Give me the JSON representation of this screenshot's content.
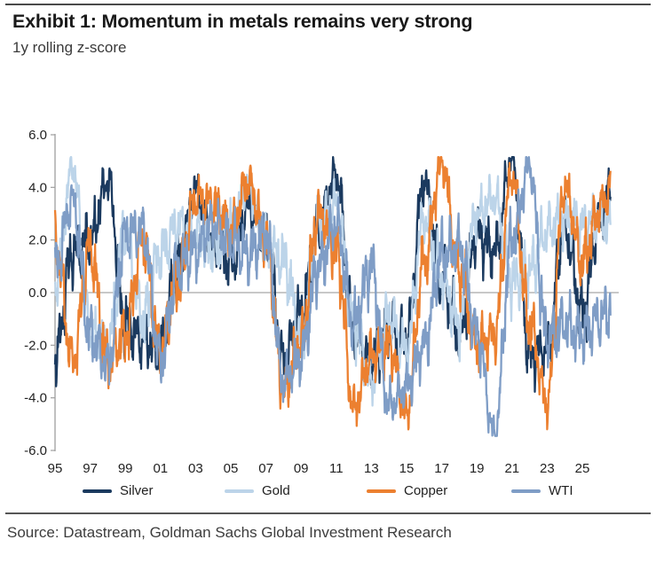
{
  "header": {
    "title": "Exhibit 1: Momentum in metals remains very strong",
    "subtitle": "1y rolling z-score"
  },
  "source": {
    "text": "Source: Datastream, Goldman Sachs Global Investment Research"
  },
  "colors": {
    "silver": "#1b3a5f",
    "gold": "#bcd4e9",
    "copper": "#ec8030",
    "wti": "#7f9dc6",
    "axis": "#9e9e9e",
    "zero_line": "#a8a8a8",
    "text": "#222222",
    "rule": "#4a4a4a"
  },
  "chart_data": {
    "type": "line",
    "title": "Exhibit 1: Momentum in metals remains very strong",
    "subtitle": "1y rolling z-score",
    "ylabel": "1y rolling z-score",
    "ylim": [
      -6.0,
      6.0
    ],
    "y_ticks": {
      "values": [
        6,
        4,
        2,
        0,
        -2,
        -4,
        -6
      ],
      "labels": [
        "6.0",
        "4.0",
        "2.0",
        "0.0",
        "-2.0",
        "-4.0",
        "-6.0"
      ]
    },
    "x_ticks": {
      "years": [
        1995,
        1997,
        1999,
        2001,
        2003,
        2005,
        2007,
        2009,
        2011,
        2013,
        2015,
        2017,
        2019,
        2021,
        2023,
        2025
      ],
      "labels": [
        "95",
        "97",
        "99",
        "01",
        "03",
        "05",
        "07",
        "09",
        "11",
        "13",
        "15",
        "17",
        "19",
        "21",
        "23",
        "25"
      ]
    },
    "x_range": [
      1995,
      2026.6
    ],
    "grid": false,
    "zero_line": true,
    "legend_position": "bottom",
    "x_years": [
      1995,
      1996,
      1997,
      1998,
      1999,
      2000,
      2001,
      2002,
      2003,
      2004,
      2005,
      2006,
      2007,
      2008,
      2009,
      2010,
      2011,
      2012,
      2013,
      2014,
      2015,
      2016,
      2017,
      2018,
      2019,
      2020,
      2021,
      2022,
      2023,
      2024,
      2025,
      2026,
      2026.6
    ],
    "series": [
      {
        "name": "Silver",
        "color": "#1b3a5f",
        "noise_amplitude": 0.85,
        "seed": 1,
        "values_yearly": [
          -2.5,
          1.5,
          2.0,
          4.3,
          -1.2,
          -1.8,
          -2.2,
          1.0,
          3.9,
          2.0,
          1.2,
          3.3,
          2.2,
          -2.6,
          -0.8,
          2.6,
          4.5,
          -1.6,
          -2.6,
          -1.4,
          -1.8,
          4.2,
          0.6,
          -1.6,
          2.2,
          1.5,
          5.1,
          -2.4,
          -2.2,
          2.5,
          -0.8,
          2.8,
          4.0
        ]
      },
      {
        "name": "Gold",
        "color": "#bcd4e9",
        "noise_amplitude": 0.85,
        "seed": 2,
        "values_yearly": [
          0.5,
          4.8,
          -1.6,
          -2.0,
          2.4,
          -1.0,
          1.5,
          2.6,
          2.2,
          1.6,
          2.6,
          4.0,
          1.8,
          1.2,
          -1.6,
          2.6,
          3.4,
          -1.2,
          -3.4,
          -1.0,
          -2.2,
          2.8,
          0.6,
          -1.2,
          3.0,
          3.6,
          0.5,
          0.8,
          2.4,
          2.8,
          2.6,
          2.8,
          2.4
        ]
      },
      {
        "name": "Copper",
        "color": "#ec8030",
        "noise_amplitude": 0.85,
        "seed": 3,
        "values_yearly": [
          2.0,
          -2.6,
          1.6,
          -2.6,
          -1.6,
          2.0,
          -2.2,
          0.5,
          3.6,
          3.4,
          2.4,
          4.2,
          2.0,
          -3.7,
          -1.8,
          3.0,
          1.6,
          -4.4,
          -2.4,
          -2.0,
          -4.6,
          1.2,
          4.9,
          0.8,
          -2.0,
          -1.6,
          4.5,
          -1.2,
          -4.2,
          4.0,
          1.2,
          3.2,
          4.0
        ]
      },
      {
        "name": "WTI",
        "color": "#7f9dc6",
        "noise_amplitude": 0.85,
        "seed": 4,
        "values_yearly": [
          1.0,
          3.5,
          -1.6,
          -2.8,
          2.2,
          2.4,
          -2.6,
          1.0,
          1.6,
          2.6,
          2.0,
          1.4,
          2.2,
          -3.4,
          -2.4,
          1.0,
          2.6,
          -1.2,
          1.0,
          -4.3,
          -3.6,
          -2.0,
          1.4,
          1.8,
          -1.6,
          -5.4,
          2.0,
          4.8,
          -1.8,
          -1.2,
          -1.6,
          -1.0,
          -0.6
        ]
      }
    ]
  }
}
